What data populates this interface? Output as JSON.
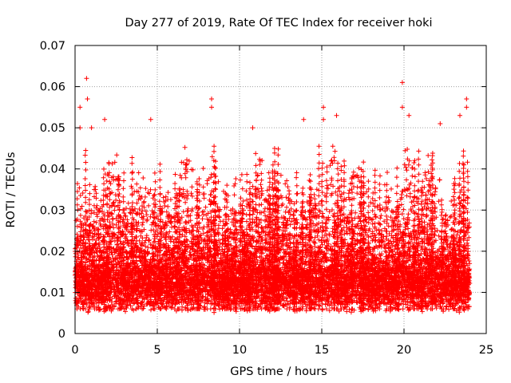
{
  "chart_data": {
    "type": "scatter",
    "title": "Day 277 of 2019, Rate Of TEC Index for receiver hoki",
    "xlabel": "GPS time / hours",
    "ylabel": "ROTI / TECUs",
    "xlim": [
      0,
      25
    ],
    "ylim": [
      0,
      0.07
    ],
    "x_ticks": [
      0,
      5,
      10,
      15,
      20,
      25
    ],
    "x_tick_labels": [
      "0",
      "5",
      "10",
      "15",
      "20",
      "25"
    ],
    "y_ticks": [
      0,
      0.01,
      0.02,
      0.03,
      0.04,
      0.05,
      0.06,
      0.07
    ],
    "y_tick_labels": [
      "0",
      "0.01",
      "0.02",
      "0.03",
      "0.04",
      "0.05",
      "0.06",
      "0.07"
    ],
    "grid": true,
    "marker": "plus",
    "series": [
      {
        "name": "ROTI",
        "color": "#ff0000",
        "x_range": [
          0,
          24
        ],
        "typical_range": [
          0.005,
          0.025
        ],
        "max_range": [
          0.003,
          0.062
        ],
        "notable_points": [
          {
            "x": 0.7,
            "y": 0.062
          },
          {
            "x": 0.75,
            "y": 0.057
          },
          {
            "x": 0.3,
            "y": 0.055
          },
          {
            "x": 0.3,
            "y": 0.05
          },
          {
            "x": 1.0,
            "y": 0.05
          },
          {
            "x": 1.8,
            "y": 0.052
          },
          {
            "x": 4.6,
            "y": 0.052
          },
          {
            "x": 8.3,
            "y": 0.057
          },
          {
            "x": 8.3,
            "y": 0.055
          },
          {
            "x": 10.8,
            "y": 0.05
          },
          {
            "x": 13.9,
            "y": 0.052
          },
          {
            "x": 15.1,
            "y": 0.055
          },
          {
            "x": 15.1,
            "y": 0.052
          },
          {
            "x": 15.9,
            "y": 0.053
          },
          {
            "x": 19.9,
            "y": 0.061
          },
          {
            "x": 19.9,
            "y": 0.055
          },
          {
            "x": 20.3,
            "y": 0.053
          },
          {
            "x": 22.2,
            "y": 0.051
          },
          {
            "x": 23.4,
            "y": 0.053
          },
          {
            "x": 23.8,
            "y": 0.057
          },
          {
            "x": 23.8,
            "y": 0.055
          }
        ]
      }
    ]
  }
}
